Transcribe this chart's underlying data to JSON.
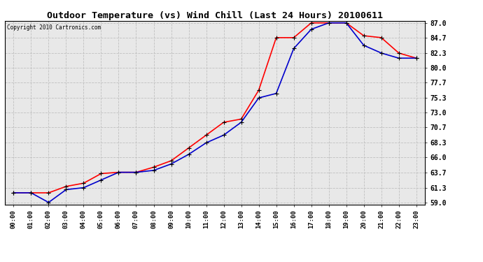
{
  "title": "Outdoor Temperature (vs) Wind Chill (Last 24 Hours) 20100611",
  "copyright_text": "Copyright 2010 Cartronics.com",
  "x_labels": [
    "00:00",
    "01:00",
    "02:00",
    "03:00",
    "04:00",
    "05:00",
    "06:00",
    "07:00",
    "08:00",
    "09:00",
    "10:00",
    "11:00",
    "12:00",
    "13:00",
    "14:00",
    "15:00",
    "16:00",
    "17:00",
    "18:00",
    "19:00",
    "20:00",
    "21:00",
    "22:00",
    "23:00"
  ],
  "outdoor_temp": [
    60.5,
    60.5,
    60.5,
    61.5,
    62.0,
    63.5,
    63.7,
    63.7,
    64.5,
    65.5,
    67.5,
    69.5,
    71.5,
    72.0,
    76.5,
    84.7,
    84.7,
    87.0,
    87.0,
    87.0,
    85.0,
    84.7,
    82.3,
    81.5
  ],
  "wind_chill": [
    60.5,
    60.5,
    59.0,
    61.0,
    61.3,
    62.5,
    63.7,
    63.7,
    64.0,
    65.0,
    66.5,
    68.3,
    69.5,
    71.5,
    75.3,
    76.0,
    83.0,
    86.0,
    87.0,
    87.0,
    83.5,
    82.3,
    81.5,
    81.5
  ],
  "temp_color": "#ff0000",
  "chill_color": "#0000cc",
  "bg_color": "#ffffff",
  "plot_bg_color": "#e8e8e8",
  "grid_color": "#c0c0c0",
  "title_color": "#000000",
  "y_ticks": [
    59.0,
    61.3,
    63.7,
    66.0,
    68.3,
    70.7,
    73.0,
    75.3,
    77.7,
    80.0,
    82.3,
    84.7,
    87.0
  ],
  "y_min": 59.0,
  "y_max": 87.0,
  "marker_size": 5,
  "line_width": 1.2
}
